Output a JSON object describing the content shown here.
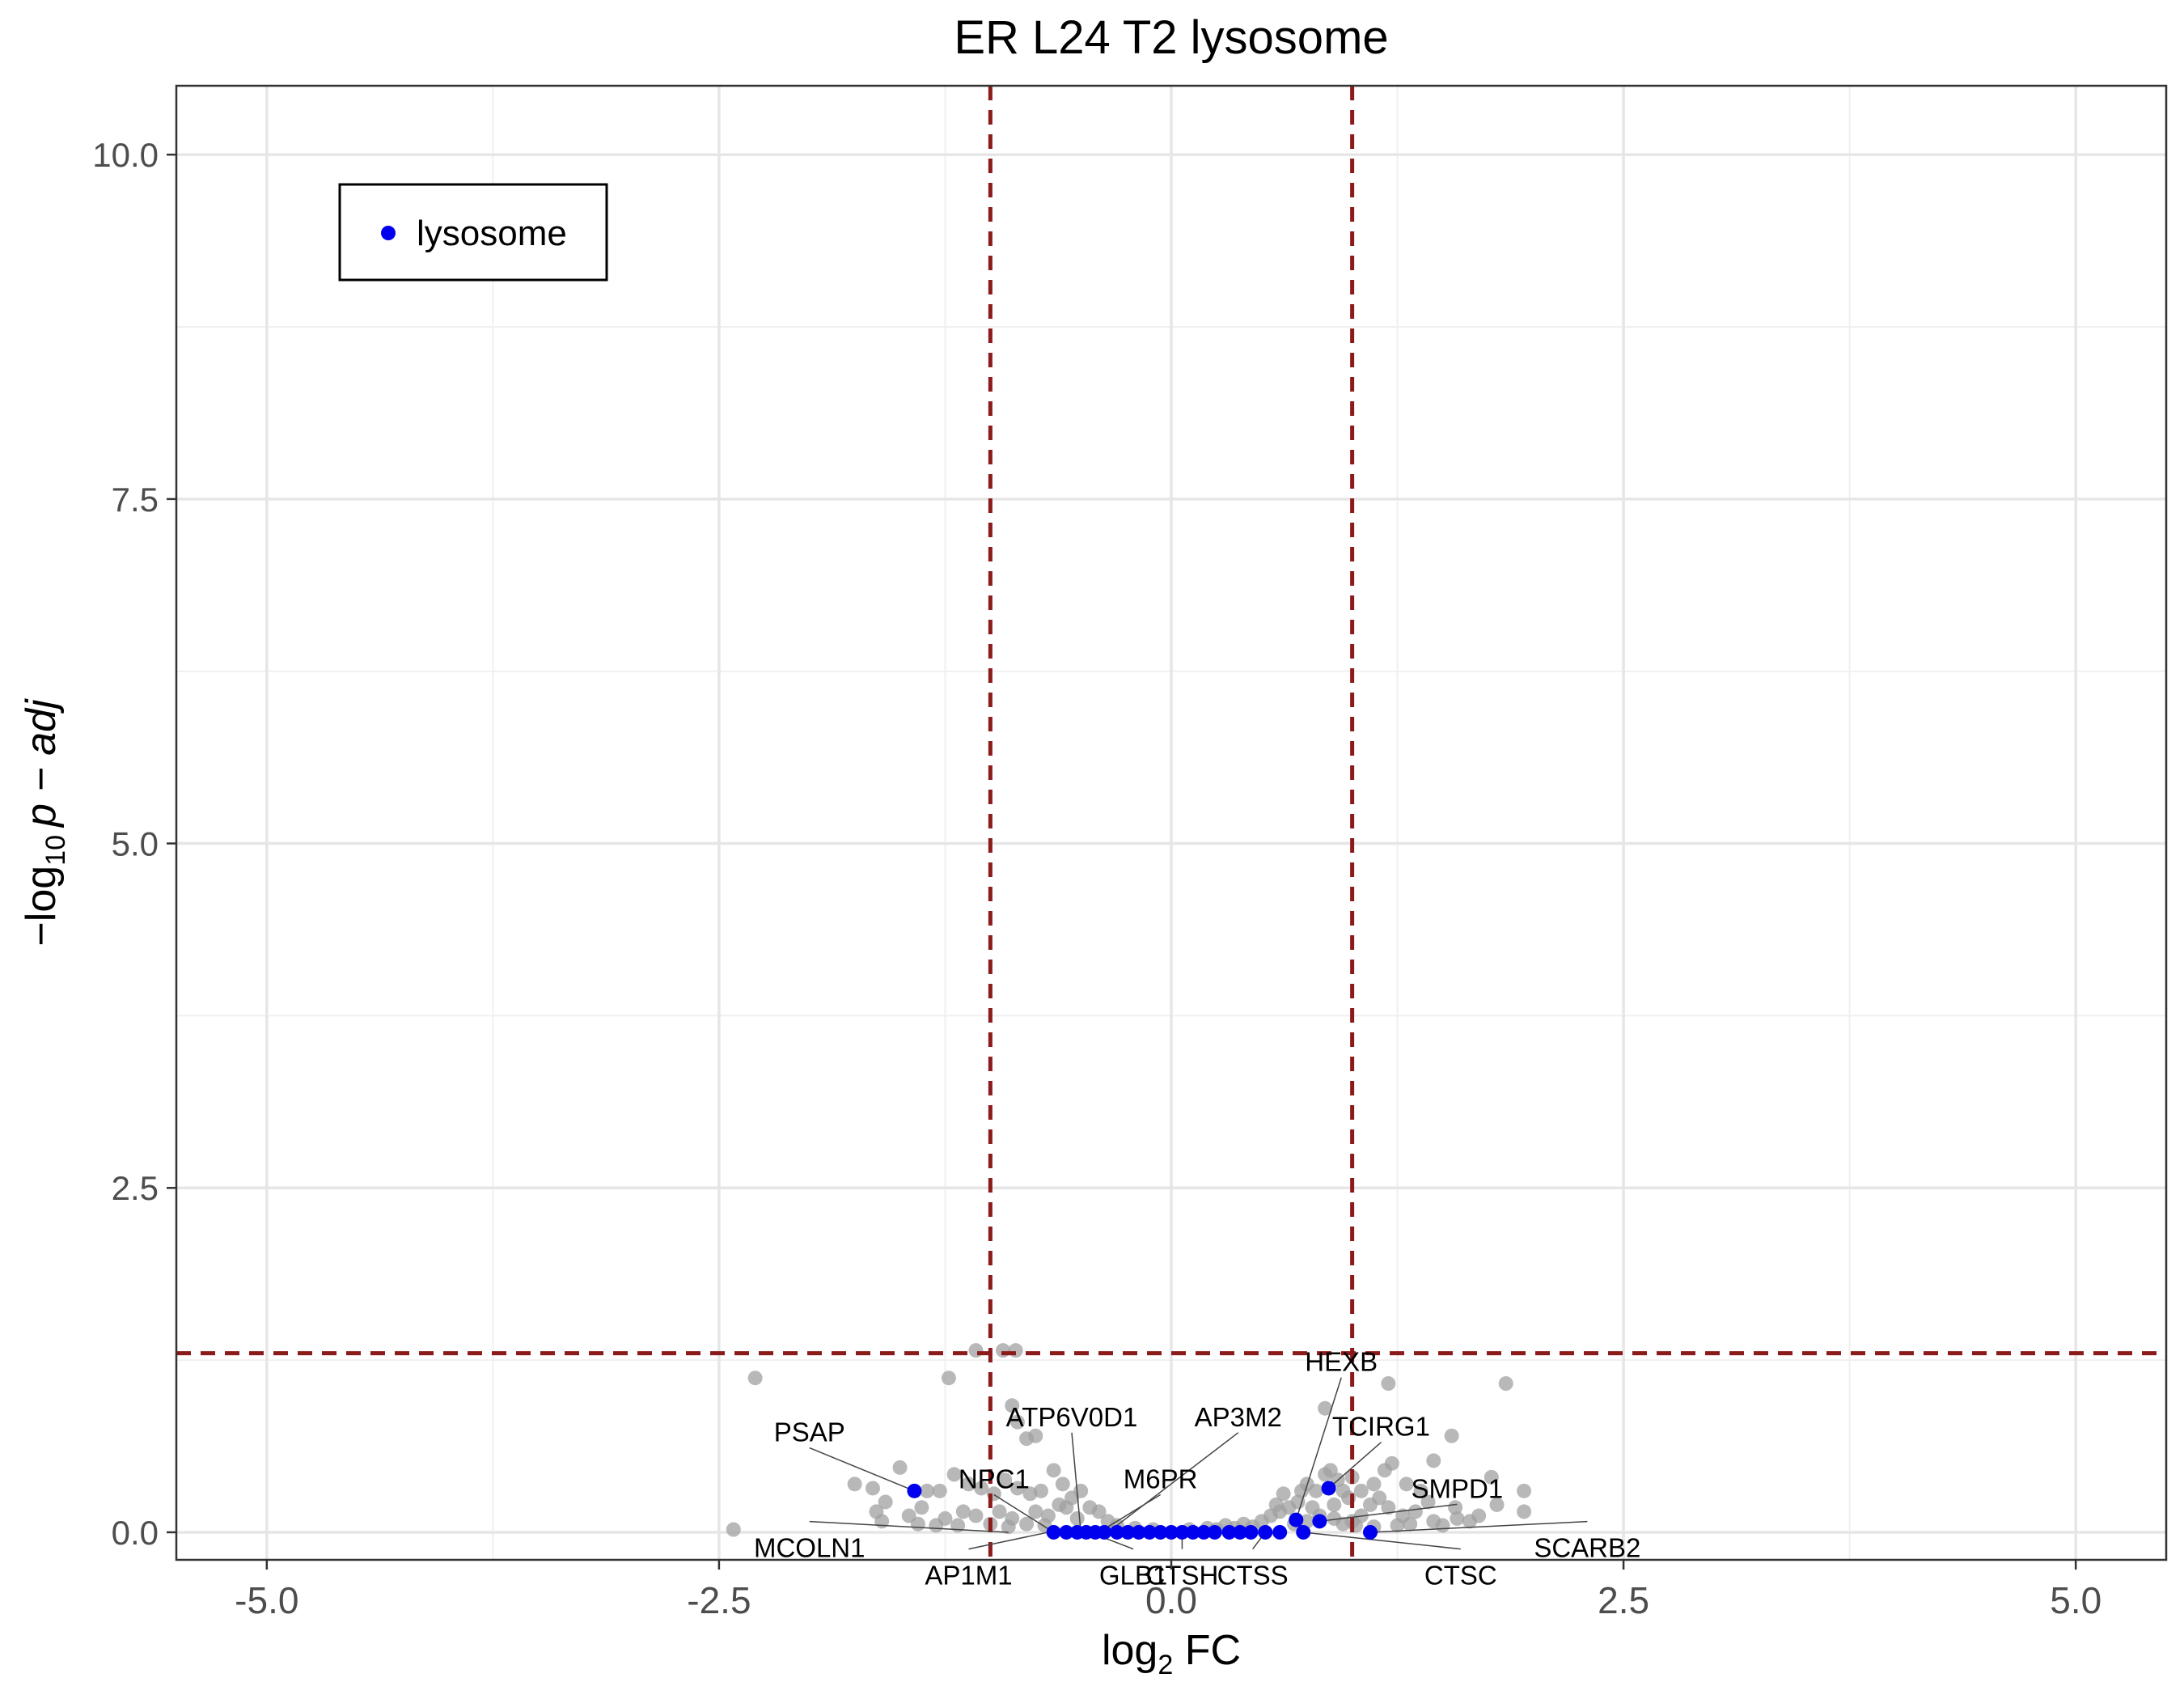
{
  "chart_data": {
    "type": "scatter",
    "title": "ER L24 T2 lysosome",
    "xlabel": {
      "main": "log",
      "sub": "2",
      "rest": " FC"
    },
    "ylabel": {
      "pre": "−log",
      "sub": "10",
      "italic": "p − adj"
    },
    "xlim": [
      -5.5,
      5.5
    ],
    "ylim": [
      -0.2,
      10.5
    ],
    "x_ticks": [
      -5.0,
      -2.5,
      0.0,
      2.5,
      5.0
    ],
    "x_tick_labels": [
      "-5.0",
      "-2.5",
      "0.0",
      "2.5",
      "5.0"
    ],
    "y_ticks": [
      0.0,
      2.5,
      5.0,
      7.5,
      10.0
    ],
    "y_tick_labels": [
      "0.0",
      "2.5",
      "5.0",
      "7.5",
      "10.0"
    ],
    "grid": true,
    "legend": {
      "position": "top-left",
      "entries": [
        {
          "label": "lysosome",
          "color": "#0000ee"
        }
      ]
    },
    "thresholds": {
      "x": [
        -1.0,
        1.0
      ],
      "y": 1.3,
      "color": "#8b1a1a"
    },
    "colors": {
      "background_points": "#a0a0a0",
      "highlight": "#0000ee"
    },
    "background_points": [
      [
        -1.08,
        1.32
      ],
      [
        -0.86,
        1.32
      ],
      [
        -0.93,
        1.32
      ],
      [
        -1.23,
        1.12
      ],
      [
        -2.3,
        1.12
      ],
      [
        -0.88,
        0.92
      ],
      [
        -0.85,
        0.8
      ],
      [
        -0.8,
        0.68
      ],
      [
        -0.75,
        0.7
      ],
      [
        -1.5,
        0.47
      ],
      [
        -1.75,
        0.35
      ],
      [
        -1.65,
        0.32
      ],
      [
        -1.58,
        0.22
      ],
      [
        -1.63,
        0.15
      ],
      [
        -1.6,
        0.08
      ],
      [
        -2.42,
        0.02
      ],
      [
        -1.35,
        0.3
      ],
      [
        -1.28,
        0.3
      ],
      [
        -1.2,
        0.42
      ],
      [
        -1.12,
        0.35
      ],
      [
        -1.05,
        0.32
      ],
      [
        -0.98,
        0.28
      ],
      [
        -0.92,
        0.38
      ],
      [
        -0.85,
        0.32
      ],
      [
        -0.78,
        0.28
      ],
      [
        -0.72,
        0.3
      ],
      [
        -0.65,
        0.45
      ],
      [
        -0.6,
        0.35
      ],
      [
        -0.55,
        0.25
      ],
      [
        -0.5,
        0.3
      ],
      [
        -0.45,
        0.18
      ],
      [
        -0.4,
        0.15
      ],
      [
        -0.62,
        0.2
      ],
      [
        -1.25,
        0.1
      ],
      [
        -1.15,
        0.15
      ],
      [
        -1.08,
        0.12
      ],
      [
        -0.95,
        0.15
      ],
      [
        -0.88,
        0.1
      ],
      [
        -0.75,
        0.15
      ],
      [
        -0.68,
        0.12
      ],
      [
        -0.58,
        0.18
      ],
      [
        -0.52,
        0.1
      ],
      [
        -0.35,
        0.08
      ],
      [
        -0.3,
        0.05
      ],
      [
        -1.3,
        0.05
      ],
      [
        -1.18,
        0.05
      ],
      [
        -1.0,
        0.06
      ],
      [
        -0.9,
        0.04
      ],
      [
        -0.8,
        0.06
      ],
      [
        -0.7,
        0.05
      ],
      [
        -1.4,
        0.06
      ],
      [
        -1.45,
        0.12
      ],
      [
        -1.38,
        0.18
      ],
      [
        -0.2,
        0.03
      ],
      [
        -0.1,
        0.02
      ],
      [
        0.1,
        0.02
      ],
      [
        0.2,
        0.03
      ],
      [
        0.3,
        0.05
      ],
      [
        0.4,
        0.06
      ],
      [
        0.5,
        0.08
      ],
      [
        0.55,
        0.12
      ],
      [
        0.6,
        0.15
      ],
      [
        0.65,
        0.18
      ],
      [
        0.7,
        0.22
      ],
      [
        0.72,
        0.3
      ],
      [
        0.75,
        0.35
      ],
      [
        0.8,
        0.3
      ],
      [
        0.85,
        0.42
      ],
      [
        0.88,
        0.45
      ],
      [
        0.92,
        0.38
      ],
      [
        0.95,
        0.3
      ],
      [
        0.98,
        0.25
      ],
      [
        1.05,
        0.3
      ],
      [
        1.12,
        0.35
      ],
      [
        1.18,
        0.45
      ],
      [
        1.22,
        0.5
      ],
      [
        1.3,
        0.35
      ],
      [
        1.38,
        0.3
      ],
      [
        1.42,
        0.22
      ],
      [
        1.35,
        0.15
      ],
      [
        1.28,
        0.12
      ],
      [
        1.2,
        0.18
      ],
      [
        1.15,
        0.25
      ],
      [
        1.1,
        0.2
      ],
      [
        1.05,
        0.12
      ],
      [
        1.0,
        0.08
      ],
      [
        0.9,
        0.1
      ],
      [
        0.82,
        0.12
      ],
      [
        0.75,
        0.08
      ],
      [
        0.68,
        0.06
      ],
      [
        0.62,
        0.28
      ],
      [
        0.58,
        0.2
      ],
      [
        0.85,
        0.9
      ],
      [
        1.2,
        1.08
      ],
      [
        1.85,
        1.08
      ],
      [
        1.55,
        0.7
      ],
      [
        1.45,
        0.52
      ],
      [
        1.57,
        0.18
      ],
      [
        1.58,
        0.1
      ],
      [
        1.77,
        0.4
      ],
      [
        1.8,
        0.2
      ],
      [
        1.95,
        0.3
      ],
      [
        1.95,
        0.15
      ],
      [
        1.5,
        0.05
      ],
      [
        1.45,
        0.08
      ],
      [
        1.32,
        0.06
      ],
      [
        1.25,
        0.05
      ],
      [
        1.12,
        0.04
      ],
      [
        1.02,
        0.05
      ],
      [
        0.95,
        0.06
      ],
      [
        0.45,
        0.04
      ],
      [
        0.35,
        0.03
      ],
      [
        0.25,
        0.02
      ],
      [
        1.65,
        0.08
      ],
      [
        1.7,
        0.12
      ],
      [
        1.0,
        0.4
      ],
      [
        0.9,
        0.2
      ],
      [
        0.78,
        0.18
      ]
    ],
    "highlight_points": [
      {
        "x": -1.42,
        "y": 0.3
      },
      {
        "x": -0.65,
        "y": 0.0
      },
      {
        "x": -0.58,
        "y": 0.0
      },
      {
        "x": -0.52,
        "y": 0.0
      },
      {
        "x": -0.47,
        "y": 0.0
      },
      {
        "x": -0.42,
        "y": 0.0
      },
      {
        "x": -0.37,
        "y": 0.0
      },
      {
        "x": -0.3,
        "y": 0.0
      },
      {
        "x": -0.24,
        "y": 0.0
      },
      {
        "x": -0.18,
        "y": 0.0
      },
      {
        "x": -0.12,
        "y": 0.0
      },
      {
        "x": -0.06,
        "y": 0.0
      },
      {
        "x": 0.0,
        "y": 0.0
      },
      {
        "x": 0.06,
        "y": 0.0
      },
      {
        "x": 0.12,
        "y": 0.0
      },
      {
        "x": 0.18,
        "y": 0.0
      },
      {
        "x": 0.24,
        "y": 0.0
      },
      {
        "x": 0.32,
        "y": 0.0
      },
      {
        "x": 0.38,
        "y": 0.0
      },
      {
        "x": 0.44,
        "y": 0.0
      },
      {
        "x": 0.52,
        "y": 0.0
      },
      {
        "x": 0.6,
        "y": 0.0
      },
      {
        "x": 0.73,
        "y": 0.0
      },
      {
        "x": 1.1,
        "y": 0.0
      },
      {
        "x": 0.69,
        "y": 0.09
      },
      {
        "x": 0.82,
        "y": 0.08
      },
      {
        "x": 0.87,
        "y": 0.32
      }
    ],
    "annotations": [
      {
        "label": "PSAP",
        "x": -2.0,
        "y": 0.66,
        "px": -1.42,
        "py": 0.3,
        "anchor": "middle"
      },
      {
        "label": "ATP6V0D1",
        "x": -0.55,
        "y": 0.77,
        "px": -0.5,
        "py": 0.0,
        "anchor": "middle"
      },
      {
        "label": "AP3M2",
        "x": 0.37,
        "y": 0.77,
        "px": -0.35,
        "py": 0.0,
        "anchor": "middle"
      },
      {
        "label": "NPC1",
        "x": -0.98,
        "y": 0.32,
        "px": -0.65,
        "py": 0.0,
        "anchor": "middle"
      },
      {
        "label": "M6PR",
        "x": -0.06,
        "y": 0.32,
        "px": -0.4,
        "py": 0.0,
        "anchor": "middle"
      },
      {
        "label": "MCOLN1",
        "x": -2.0,
        "y": -0.18,
        "px": -0.9,
        "py": 0.0,
        "anchor": "middle"
      },
      {
        "label": "AP1M1",
        "x": -1.12,
        "y": -0.38,
        "px": -0.68,
        "py": 0.0,
        "anchor": "middle"
      },
      {
        "label": "GLB1",
        "x": -0.21,
        "y": -0.38,
        "px": -0.45,
        "py": 0.0,
        "anchor": "middle"
      },
      {
        "label": "CTSH",
        "x": 0.06,
        "y": -0.38,
        "px": 0.06,
        "py": 0.0,
        "anchor": "middle"
      },
      {
        "label": "CTSS",
        "x": 0.45,
        "y": -0.38,
        "px": 0.52,
        "py": 0.0,
        "anchor": "middle"
      },
      {
        "label": "HEXB",
        "x": 0.94,
        "y": 1.17,
        "px": 0.69,
        "py": 0.09,
        "anchor": "middle"
      },
      {
        "label": "TCIRG1",
        "x": 1.16,
        "y": 0.7,
        "px": 0.87,
        "py": 0.32,
        "anchor": "middle"
      },
      {
        "label": "SMPD1",
        "x": 1.58,
        "y": 0.25,
        "px": 0.82,
        "py": 0.08,
        "anchor": "middle"
      },
      {
        "label": "SCARB2",
        "x": 2.3,
        "y": -0.18,
        "px": 1.1,
        "py": 0.0,
        "anchor": "middle"
      },
      {
        "label": "CTSC",
        "x": 1.6,
        "y": -0.38,
        "px": 0.73,
        "py": 0.0,
        "anchor": "middle"
      }
    ]
  }
}
